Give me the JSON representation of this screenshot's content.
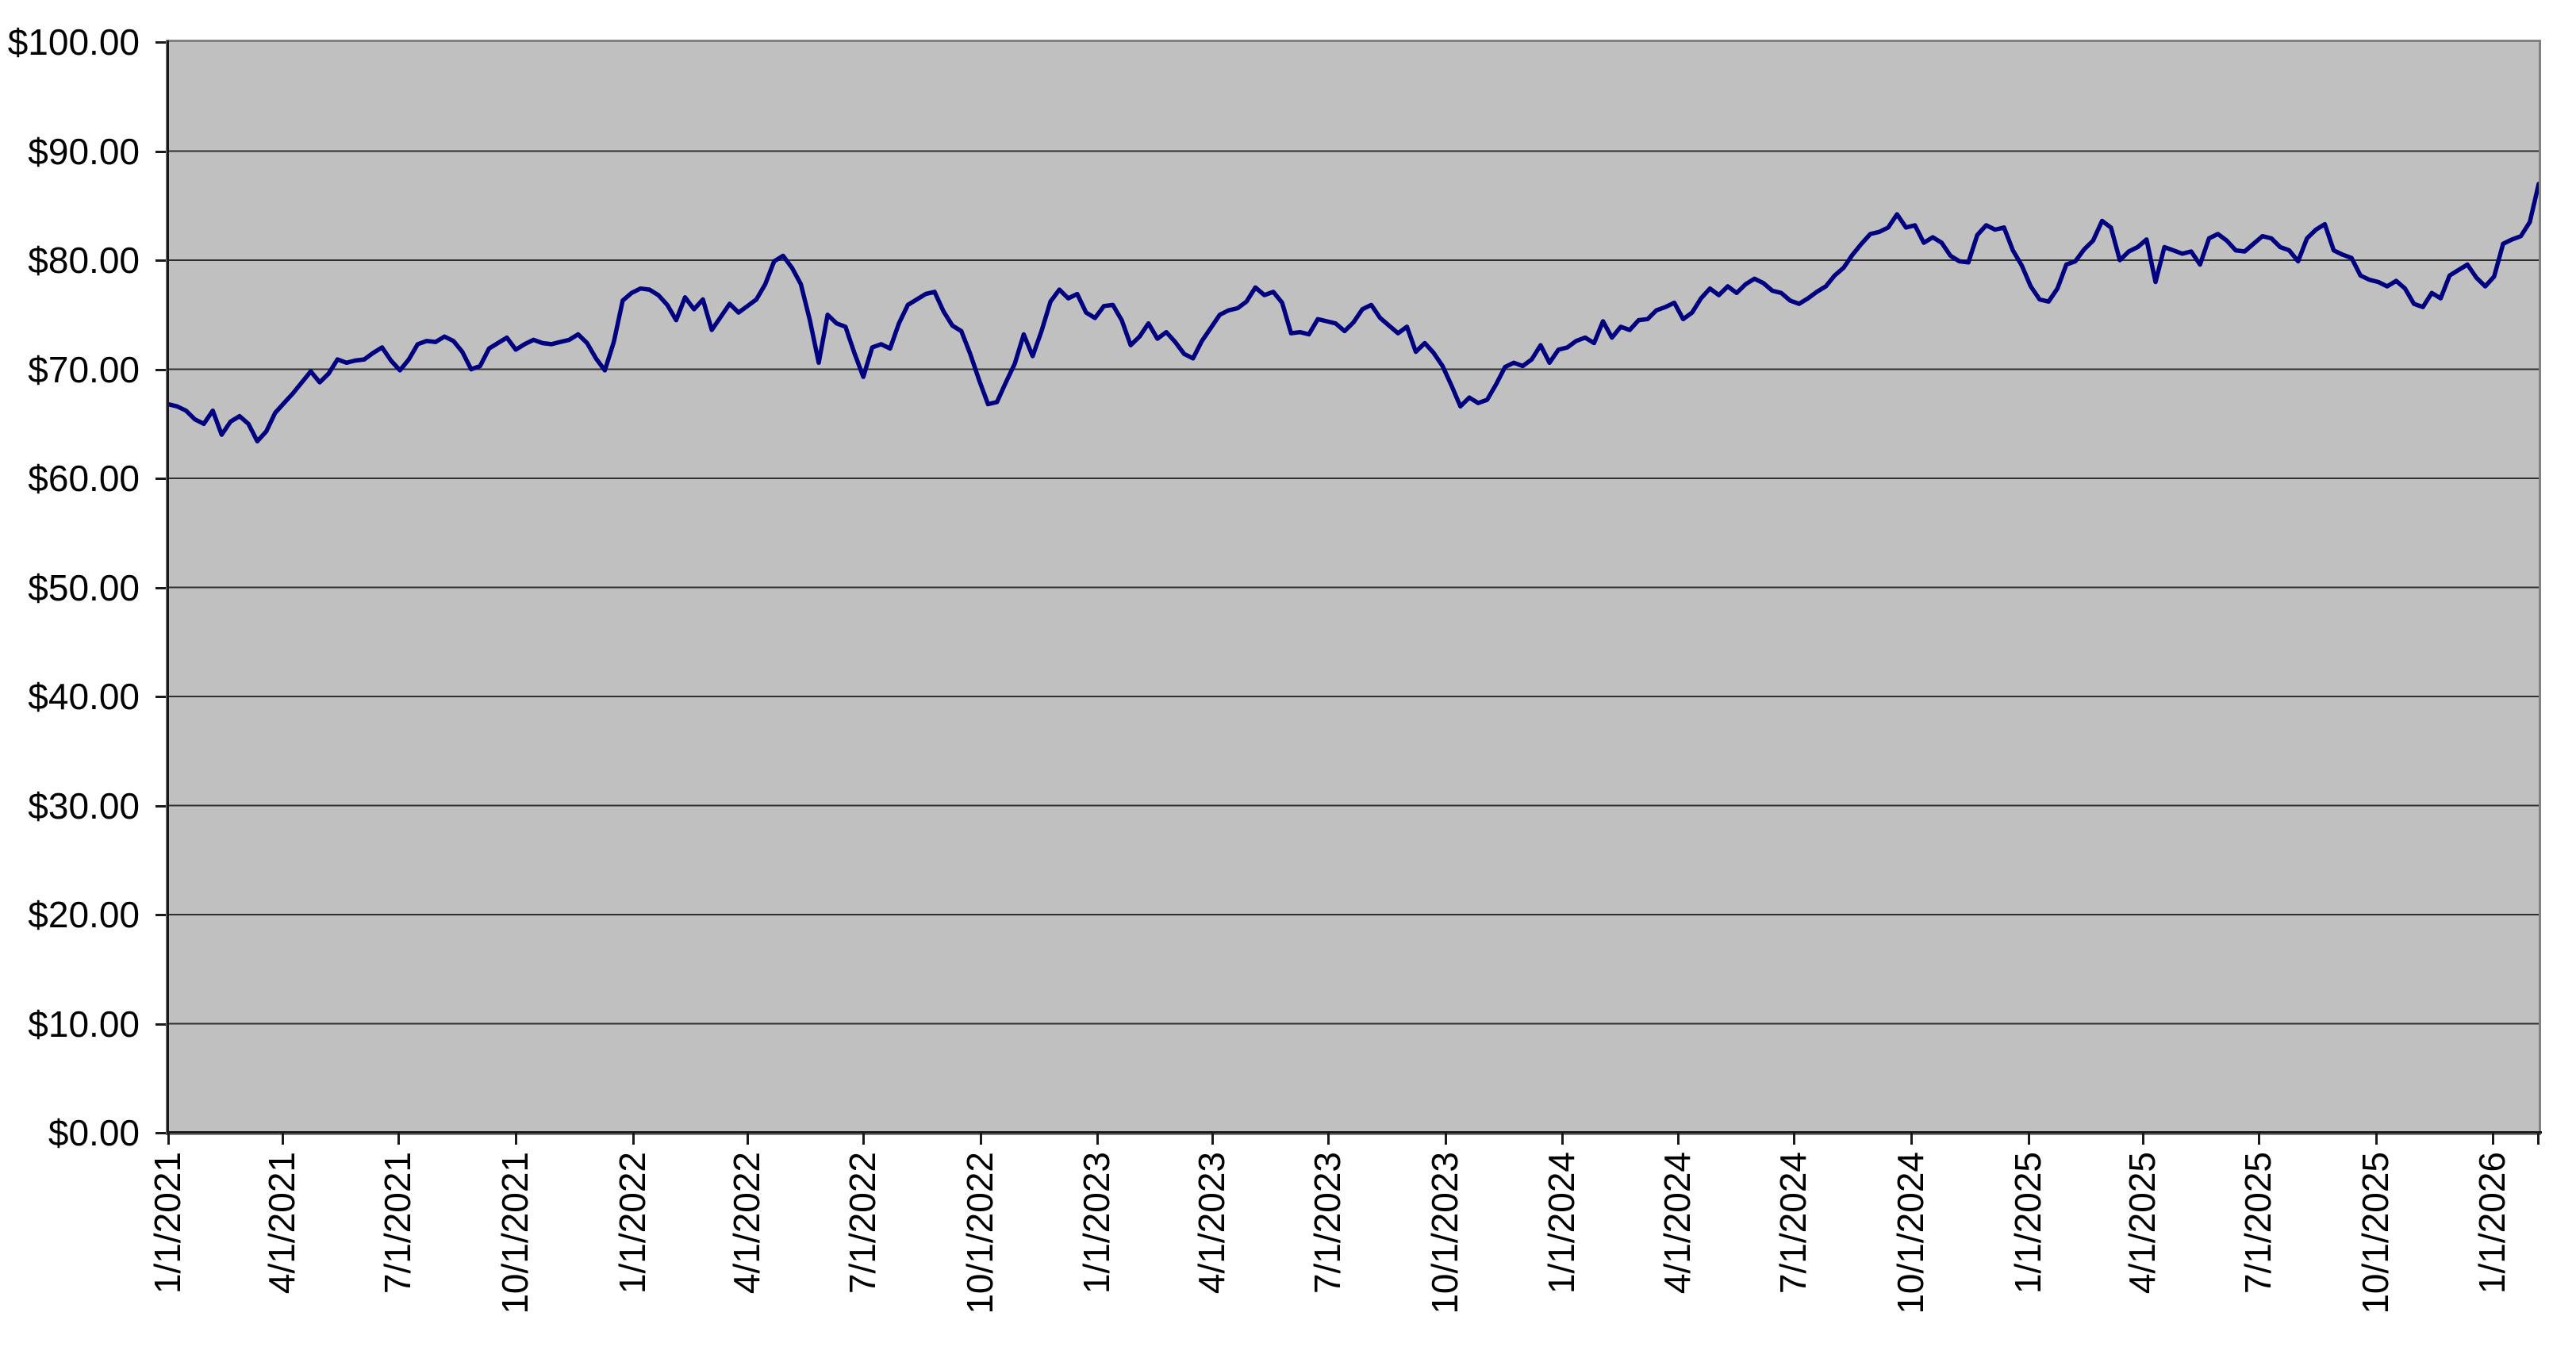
{
  "page": {
    "background_color": "#FFFFFF",
    "title": ""
  },
  "chart_data": {
    "type": "line",
    "title": "",
    "xlabel": "",
    "ylabel": "",
    "legend": "none",
    "grid": "horizontal",
    "plot_bg_color": "#C0C0C0",
    "wall_border_color": "#808080",
    "gridline_color": "#2F2F2F",
    "axis_line_color": "#1A1A1A",
    "line_color": "#000080",
    "ylim": [
      0,
      100
    ],
    "y_ticks": [
      {
        "value": 0,
        "label": "$0.00"
      },
      {
        "value": 10,
        "label": "$10.00"
      },
      {
        "value": 20,
        "label": "$20.00"
      },
      {
        "value": 30,
        "label": "$30.00"
      },
      {
        "value": 40,
        "label": "$40.00"
      },
      {
        "value": 50,
        "label": "$50.00"
      },
      {
        "value": 60,
        "label": "$60.00"
      },
      {
        "value": 70,
        "label": "$70.00"
      },
      {
        "value": 80,
        "label": "$80.00"
      },
      {
        "value": 90,
        "label": "$90.00"
      },
      {
        "value": 100,
        "label": "$100.00"
      }
    ],
    "x_ticks": [
      {
        "day": 0,
        "label": "1/1/2021"
      },
      {
        "day": 90,
        "label": "4/1/2021"
      },
      {
        "day": 181,
        "label": "7/1/2021"
      },
      {
        "day": 273,
        "label": "10/1/2021"
      },
      {
        "day": 365,
        "label": "1/1/2022"
      },
      {
        "day": 455,
        "label": "4/1/2022"
      },
      {
        "day": 546,
        "label": "7/1/2022"
      },
      {
        "day": 638,
        "label": "10/1/2022"
      },
      {
        "day": 730,
        "label": "1/1/2023"
      },
      {
        "day": 820,
        "label": "4/1/2023"
      },
      {
        "day": 911,
        "label": "7/1/2023"
      },
      {
        "day": 1003,
        "label": "10/1/2023"
      },
      {
        "day": 1095,
        "label": "1/1/2024"
      },
      {
        "day": 1186,
        "label": "4/1/2024"
      },
      {
        "day": 1277,
        "label": "7/1/2024"
      },
      {
        "day": 1369,
        "label": "10/1/2024"
      },
      {
        "day": 1461,
        "label": "1/1/2025"
      },
      {
        "day": 1551,
        "label": "4/1/2025"
      },
      {
        "day": 1642,
        "label": "7/1/2025"
      },
      {
        "day": 1734,
        "label": "10/1/2025"
      },
      {
        "day": 1826,
        "label": "1/1/2026"
      }
    ],
    "x_span_days": 1862,
    "right_edge_tick_day": 1862,
    "series": [
      {
        "name": "price",
        "start_label": "1/1/2021",
        "interval_days": 7,
        "values": [
          66.8,
          66.6,
          66.2,
          65.4,
          65.0,
          66.2,
          64.0,
          65.2,
          65.7,
          65.0,
          63.4,
          64.3,
          66.0,
          66.9,
          67.8,
          68.8,
          69.8,
          68.8,
          69.6,
          70.9,
          70.6,
          70.8,
          70.9,
          71.5,
          72.0,
          70.8,
          69.9,
          70.9,
          72.3,
          72.6,
          72.5,
          73.0,
          72.6,
          71.6,
          70.0,
          70.3,
          71.9,
          72.4,
          72.9,
          71.8,
          72.3,
          72.7,
          72.4,
          72.3,
          72.5,
          72.7,
          73.2,
          72.4,
          71.0,
          69.9,
          72.5,
          76.3,
          77.0,
          77.4,
          77.3,
          76.8,
          75.9,
          74.5,
          76.6,
          75.5,
          76.4,
          73.6,
          74.8,
          76.0,
          75.2,
          75.8,
          76.4,
          77.8,
          79.9,
          80.4,
          79.3,
          77.8,
          74.5,
          70.6,
          75.0,
          74.2,
          73.9,
          71.5,
          69.3,
          72.0,
          72.3,
          71.9,
          74.2,
          75.9,
          76.4,
          76.9,
          77.1,
          75.3,
          74.0,
          73.5,
          71.4,
          69.0,
          66.8,
          67.0,
          68.8,
          70.5,
          73.2,
          71.2,
          73.5,
          76.2,
          77.3,
          76.5,
          76.9,
          75.2,
          74.7,
          75.8,
          75.9,
          74.5,
          72.2,
          73.0,
          74.2,
          72.8,
          73.4,
          72.5,
          71.4,
          71.0,
          72.6,
          73.8,
          75.0,
          75.4,
          75.6,
          76.2,
          77.5,
          76.8,
          77.1,
          76.1,
          73.3,
          73.4,
          73.2,
          74.6,
          74.4,
          74.2,
          73.5,
          74.3,
          75.5,
          75.9,
          74.7,
          74.0,
          73.3,
          73.9,
          71.6,
          72.4,
          71.5,
          70.3,
          68.5,
          66.6,
          67.4,
          66.9,
          67.2,
          68.6,
          70.2,
          70.6,
          70.3,
          70.9,
          72.2,
          70.6,
          71.8,
          72.0,
          72.6,
          72.9,
          72.4,
          74.4,
          72.9,
          73.9,
          73.6,
          74.5,
          74.6,
          75.4,
          75.7,
          76.1,
          74.6,
          75.2,
          76.5,
          77.4,
          76.8,
          77.6,
          77.0,
          77.8,
          78.3,
          77.9,
          77.2,
          77.0,
          76.3,
          76.0,
          76.5,
          77.1,
          77.6,
          78.6,
          79.3,
          80.5,
          81.5,
          82.4,
          82.6,
          83.0,
          84.2,
          83.0,
          83.2,
          81.6,
          82.1,
          81.6,
          80.4,
          79.9,
          79.8,
          82.3,
          83.2,
          82.8,
          83.0,
          80.9,
          79.5,
          77.6,
          76.4,
          76.2,
          77.4,
          79.6,
          79.9,
          81.0,
          81.8,
          83.6,
          83.0,
          80.0,
          80.8,
          81.2,
          81.9,
          78.0,
          81.2,
          80.9,
          80.6,
          80.8,
          79.6,
          82.0,
          82.4,
          81.8,
          80.9,
          80.8,
          81.5,
          82.2,
          82.0,
          81.2,
          80.9,
          79.9,
          82.0,
          82.8,
          83.3,
          80.9,
          80.5,
          80.2,
          78.6,
          78.2,
          78.0,
          77.6,
          78.1,
          77.4,
          76.0,
          75.7,
          77.0,
          76.5,
          78.6,
          79.1,
          79.6,
          78.4,
          77.6,
          78.5,
          81.5,
          81.9,
          82.2,
          83.5,
          87.0
        ]
      }
    ]
  }
}
